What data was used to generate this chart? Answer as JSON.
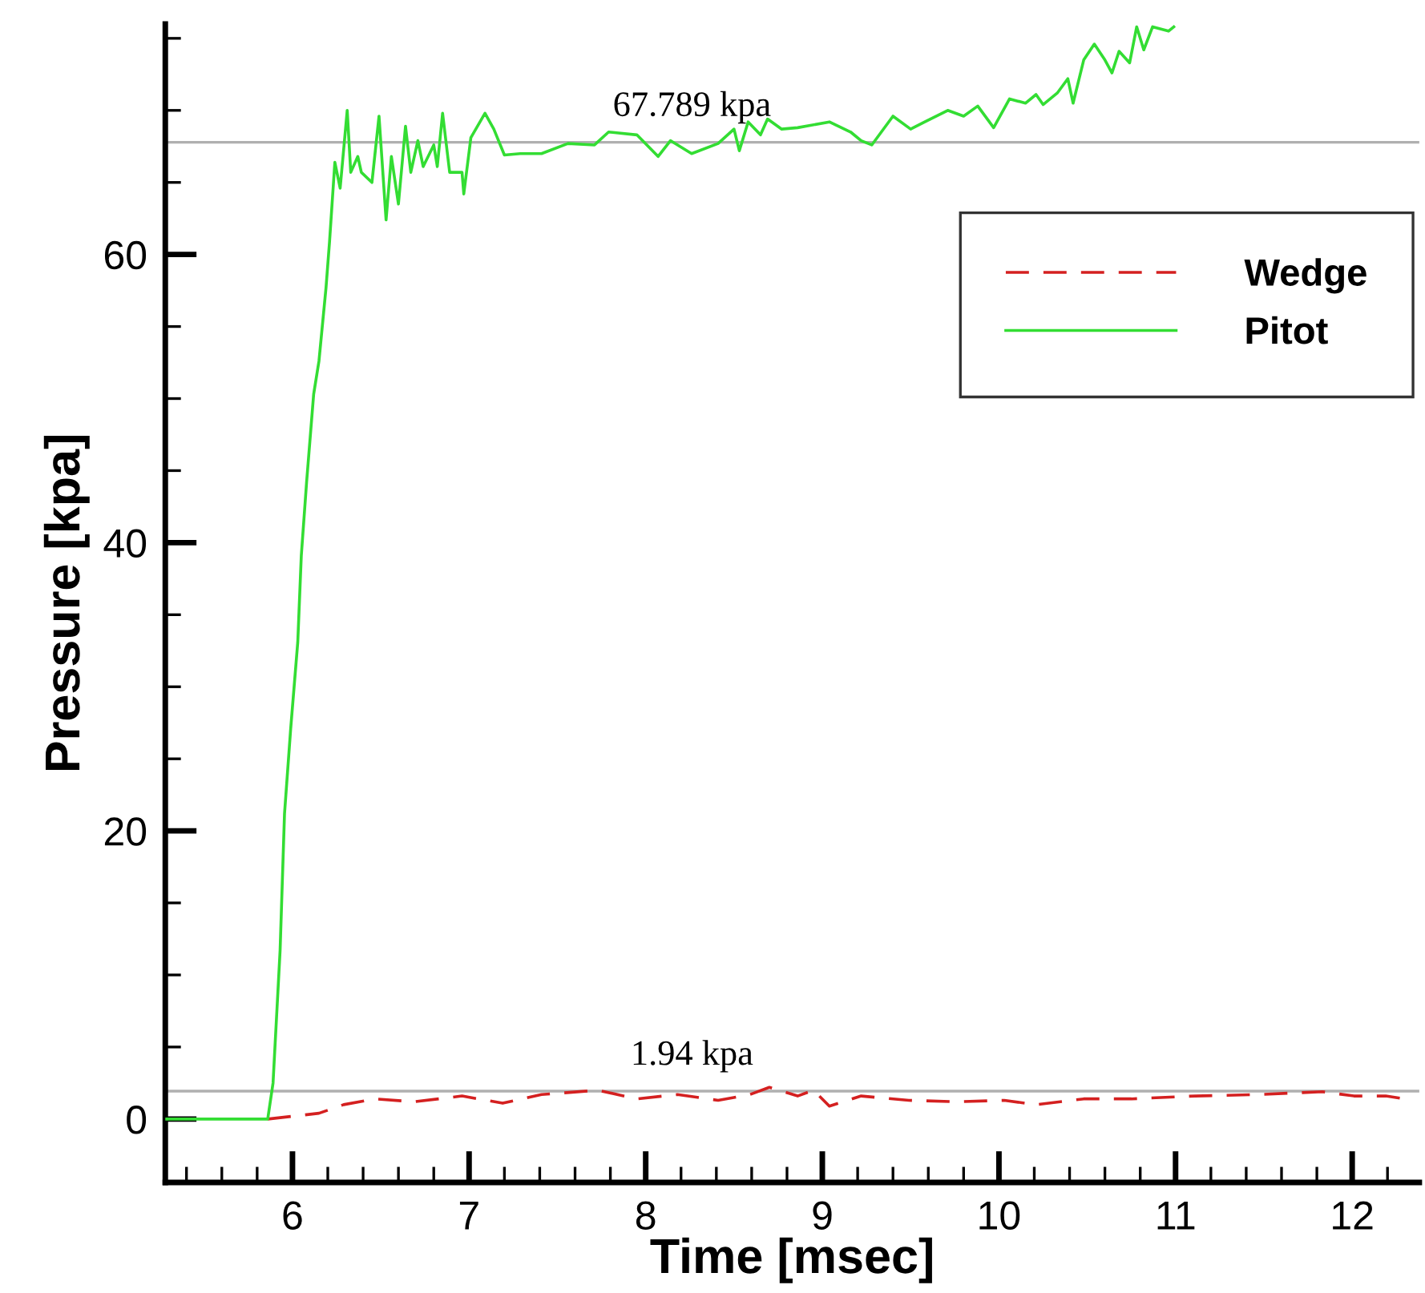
{
  "chart_data": {
    "type": "line",
    "xlabel": "Time [msec]",
    "ylabel": "Pressure [kpa]",
    "xlim": [
      5.28,
      12.38
    ],
    "ylim": [
      -4.4,
      76
    ],
    "xticks": [
      {
        "value": 5.4,
        "label": null
      },
      {
        "value": 5.6,
        "label": null
      },
      {
        "value": 5.8,
        "label": null
      },
      6,
      {
        "value": 6.2,
        "label": null
      },
      {
        "value": 6.4,
        "label": null
      },
      {
        "value": 6.6,
        "label": null
      },
      {
        "value": 6.8,
        "label": null
      },
      7,
      {
        "value": 7.2,
        "label": null
      },
      {
        "value": 7.4,
        "label": null
      },
      {
        "value": 7.6,
        "label": null
      },
      {
        "value": 7.8,
        "label": null
      },
      8,
      {
        "value": 8.2,
        "label": null
      },
      {
        "value": 8.4,
        "label": null
      },
      {
        "value": 8.6,
        "label": null
      },
      {
        "value": 8.8,
        "label": null
      },
      9,
      {
        "value": 9.2,
        "label": null
      },
      {
        "value": 9.4,
        "label": null
      },
      {
        "value": 9.6,
        "label": null
      },
      {
        "value": 9.8,
        "label": null
      },
      10,
      {
        "value": 10.2,
        "label": null
      },
      {
        "value": 10.4,
        "label": null
      },
      {
        "value": 10.6,
        "label": null
      },
      {
        "value": 10.8,
        "label": null
      },
      11,
      {
        "value": 11.2,
        "label": null
      },
      {
        "value": 11.4,
        "label": null
      },
      {
        "value": 11.6,
        "label": null
      },
      {
        "value": 11.8,
        "label": null
      },
      12,
      {
        "value": 12.2,
        "label": null
      }
    ],
    "yticks": [
      0,
      {
        "value": 5,
        "label": null
      },
      {
        "value": 10,
        "label": null
      },
      {
        "value": 15,
        "label": null
      },
      20,
      {
        "value": 25,
        "label": null
      },
      {
        "value": 30,
        "label": null
      },
      {
        "value": 35,
        "label": null
      },
      40,
      {
        "value": 45,
        "label": null
      },
      {
        "value": 50,
        "label": null
      },
      {
        "value": 55,
        "label": null
      },
      60,
      {
        "value": 65,
        "label": null
      },
      {
        "value": 70,
        "label": null
      },
      {
        "value": 75,
        "label": null
      }
    ],
    "grid": false,
    "legend": "top right",
    "ref_lines": [
      {
        "axis": "y",
        "value": 67.789,
        "label": "67.789 kpa",
        "color": "#b0b0b0"
      },
      {
        "axis": "y",
        "value": 1.94,
        "label": "1.94 kpa",
        "color": "#b0b0b0"
      }
    ],
    "series": [
      {
        "name": "Wedge",
        "color": "#d42020",
        "line_style": "dashed",
        "x": [
          5.86,
          6.15,
          6.29,
          6.47,
          6.69,
          6.96,
          7.19,
          7.41,
          7.73,
          7.95,
          8.18,
          8.41,
          8.59,
          8.7,
          8.86,
          8.95,
          9.04,
          9.22,
          9.49,
          9.76,
          10.03,
          10.21,
          10.48,
          10.75,
          11.11,
          11.47,
          11.83,
          12.01,
          12.19,
          12.3
        ],
        "values": [
          0,
          0.4,
          1.0,
          1.4,
          1.2,
          1.6,
          1.1,
          1.7,
          2.0,
          1.4,
          1.7,
          1.3,
          1.7,
          2.2,
          1.6,
          2.0,
          0.9,
          1.6,
          1.3,
          1.2,
          1.3,
          1.0,
          1.4,
          1.4,
          1.6,
          1.7,
          1.9,
          1.6,
          1.6,
          1.4
        ]
      },
      {
        "name": "Pitot",
        "color": "#33dd33",
        "line_style": "solid",
        "x": [
          5.28,
          5.84,
          5.86,
          5.89,
          5.93,
          5.955,
          5.99,
          6.03,
          6.05,
          6.08,
          6.12,
          6.15,
          6.19,
          6.21,
          6.24,
          6.27,
          6.31,
          6.33,
          6.37,
          6.39,
          6.45,
          6.49,
          6.53,
          6.56,
          6.6,
          6.64,
          6.67,
          6.71,
          6.74,
          6.8,
          6.82,
          6.85,
          6.89,
          6.96,
          6.97,
          7.01,
          7.09,
          7.14,
          7.2,
          7.29,
          7.41,
          7.56,
          7.71,
          7.79,
          7.95,
          8.07,
          8.14,
          8.26,
          8.41,
          8.5,
          8.53,
          8.58,
          8.65,
          8.69,
          8.77,
          8.86,
          9.04,
          9.16,
          9.22,
          9.28,
          9.4,
          9.5,
          9.58,
          9.71,
          9.8,
          9.88,
          9.97,
          10.06,
          10.15,
          10.21,
          10.25,
          10.33,
          10.39,
          10.42,
          10.48,
          10.54,
          10.6,
          10.64,
          10.68,
          10.74,
          10.78,
          10.82,
          10.87,
          10.96,
          10.99
        ],
        "values": [
          0,
          0,
          0,
          2.5,
          11.7,
          21.2,
          27.1,
          33.1,
          39.1,
          44.2,
          50.3,
          52.6,
          57.7,
          60.9,
          66.4,
          64.6,
          70.0,
          65.7,
          66.8,
          65.7,
          65.0,
          69.6,
          62.4,
          66.8,
          63.5,
          68.9,
          65.7,
          67.9,
          66.1,
          67.6,
          66.1,
          69.8,
          65.7,
          65.7,
          64.2,
          68.1,
          69.8,
          68.7,
          66.9,
          67.0,
          67.0,
          67.7,
          67.6,
          68.5,
          68.3,
          66.8,
          67.9,
          67.0,
          67.7,
          68.7,
          67.2,
          69.2,
          68.3,
          69.4,
          68.7,
          68.8,
          69.2,
          68.5,
          67.9,
          67.6,
          69.6,
          68.7,
          69.2,
          70.0,
          69.6,
          70.3,
          68.8,
          70.8,
          70.5,
          71.1,
          70.4,
          71.2,
          72.2,
          70.5,
          73.5,
          74.6,
          73.5,
          72.6,
          74.1,
          73.3,
          75.8,
          74.2,
          75.8,
          75.5,
          75.8
        ]
      }
    ]
  }
}
